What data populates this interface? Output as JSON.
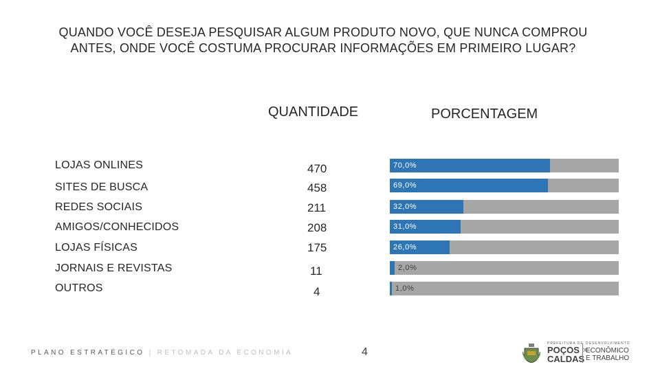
{
  "chart_data": {
    "type": "bar",
    "title": "QUANDO VOCÊ DESEJA PESQUISAR ALGUM PRODUTO NOVO, QUE NUNCA COMPROU ANTES, ONDE VOCÊ COSTUMA PROCURAR INFORMAÇÕES EM PRIMEIRO LUGAR?",
    "quantity_header": "QUANTIDADE",
    "percentage_header": "PORCENTAGEM",
    "categories": [
      "LOJAS ONLINES",
      "SITES DE BUSCA",
      "REDES SOCIAIS",
      "AMIGOS/CONHECIDOS",
      "LOJAS FÍSICAS",
      "JORNAIS E REVISTAS",
      "OUTROS"
    ],
    "quantities": [
      "470",
      "458",
      "211",
      "208",
      "175",
      "11",
      "4"
    ],
    "values": [
      70.0,
      69.0,
      32.0,
      31.0,
      26.0,
      2.0,
      1.0
    ],
    "value_labels": [
      "70,0%",
      "69,0%",
      "32,0%",
      "31,0%",
      "26,0%",
      "2,0%",
      "1,0%"
    ],
    "xlim": [
      0,
      100
    ],
    "colors": {
      "bar": "#2e75b6",
      "track": "#a6a6a6"
    }
  },
  "footer": {
    "left_strong": "PLANO ESTRATÉGICO",
    "left_separator": " | ",
    "left_muted": "RETOMADA DA ECONOMIA",
    "page_number": "4"
  },
  "logo": {
    "prefix": "PREFEITURA DE",
    "city_line1": "POÇOS",
    "city_de": "DE",
    "city_line2": "CALDAS",
    "dept_small": "DESENVOLVIMENTO",
    "dept_line1": "ECONÔMICO",
    "dept_line2": "E TRABALHO"
  }
}
